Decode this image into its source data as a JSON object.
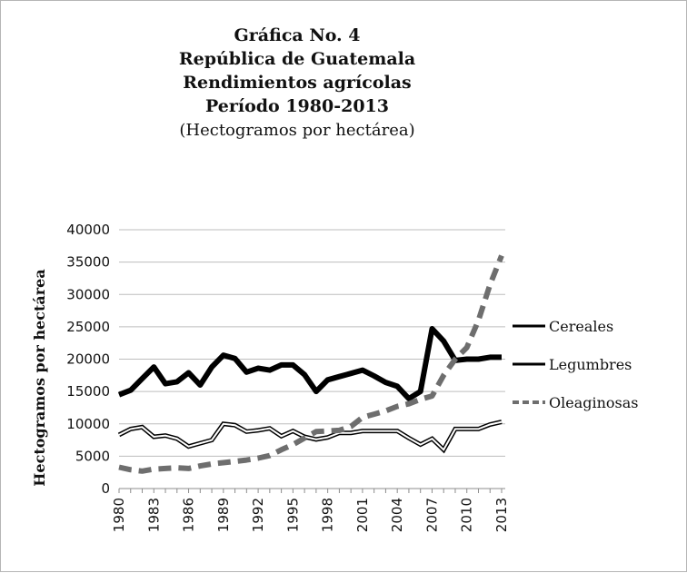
{
  "chart_data": {
    "type": "line",
    "title_lines": [
      "Gráfica No. 4",
      "República de Guatemala",
      "Rendimientos agrícolas",
      "Período 1980-2013"
    ],
    "subtitle": "(Hectogramos por hectárea)",
    "ylabel": "Hectogramos por hectárea",
    "xlabel": "",
    "ylim": [
      0,
      40000
    ],
    "yticks": [
      "0",
      "5000",
      "10000",
      "15000",
      "20000",
      "25000",
      "30000",
      "35000",
      "40000"
    ],
    "x": [
      1980,
      1981,
      1982,
      1983,
      1984,
      1985,
      1986,
      1987,
      1988,
      1989,
      1990,
      1991,
      1992,
      1993,
      1994,
      1995,
      1996,
      1997,
      1998,
      1999,
      2000,
      2001,
      2002,
      2003,
      2004,
      2005,
      2006,
      2007,
      2008,
      2009,
      2010,
      2011,
      2012,
      2013
    ],
    "xticks": [
      "1980",
      "1983",
      "1986",
      "1989",
      "1992",
      "1995",
      "1998",
      "2001",
      "2004",
      "2007",
      "2010",
      "2013"
    ],
    "grid": "horizontal",
    "legend_position": "right",
    "series": [
      {
        "name": "Cereales",
        "style": "thick-solid",
        "color": "#000000",
        "values": [
          14500,
          15200,
          17000,
          18800,
          16200,
          16500,
          17900,
          16000,
          18800,
          20600,
          20100,
          18000,
          18600,
          18300,
          19100,
          19100,
          17600,
          15000,
          16800,
          17300,
          17800,
          18300,
          17400,
          16400,
          15800,
          13900,
          15000,
          24700,
          22800,
          19800,
          20000,
          20000,
          20300,
          20300
        ]
      },
      {
        "name": "Legumbres",
        "style": "double-line",
        "color": "#000000",
        "values": [
          8300,
          9200,
          9500,
          8000,
          8200,
          7700,
          6500,
          7000,
          7500,
          10000,
          9800,
          8800,
          9000,
          9300,
          8100,
          8900,
          8000,
          7600,
          7900,
          8600,
          8600,
          8900,
          8900,
          8900,
          8900,
          7800,
          6800,
          7700,
          6000,
          9200,
          9200,
          9200,
          9900,
          10300
        ]
      },
      {
        "name": "Oleaginosas",
        "style": "dashed",
        "color": "#6e6e6e",
        "values": [
          3300,
          2900,
          2700,
          3000,
          3100,
          3200,
          3100,
          3500,
          3800,
          4000,
          4200,
          4400,
          4700,
          5100,
          6000,
          6800,
          7800,
          8800,
          8900,
          9000,
          9600,
          11000,
          11500,
          12000,
          12700,
          13100,
          13800,
          14300,
          17500,
          20000,
          21800,
          26000,
          31500,
          36000
        ]
      }
    ]
  }
}
